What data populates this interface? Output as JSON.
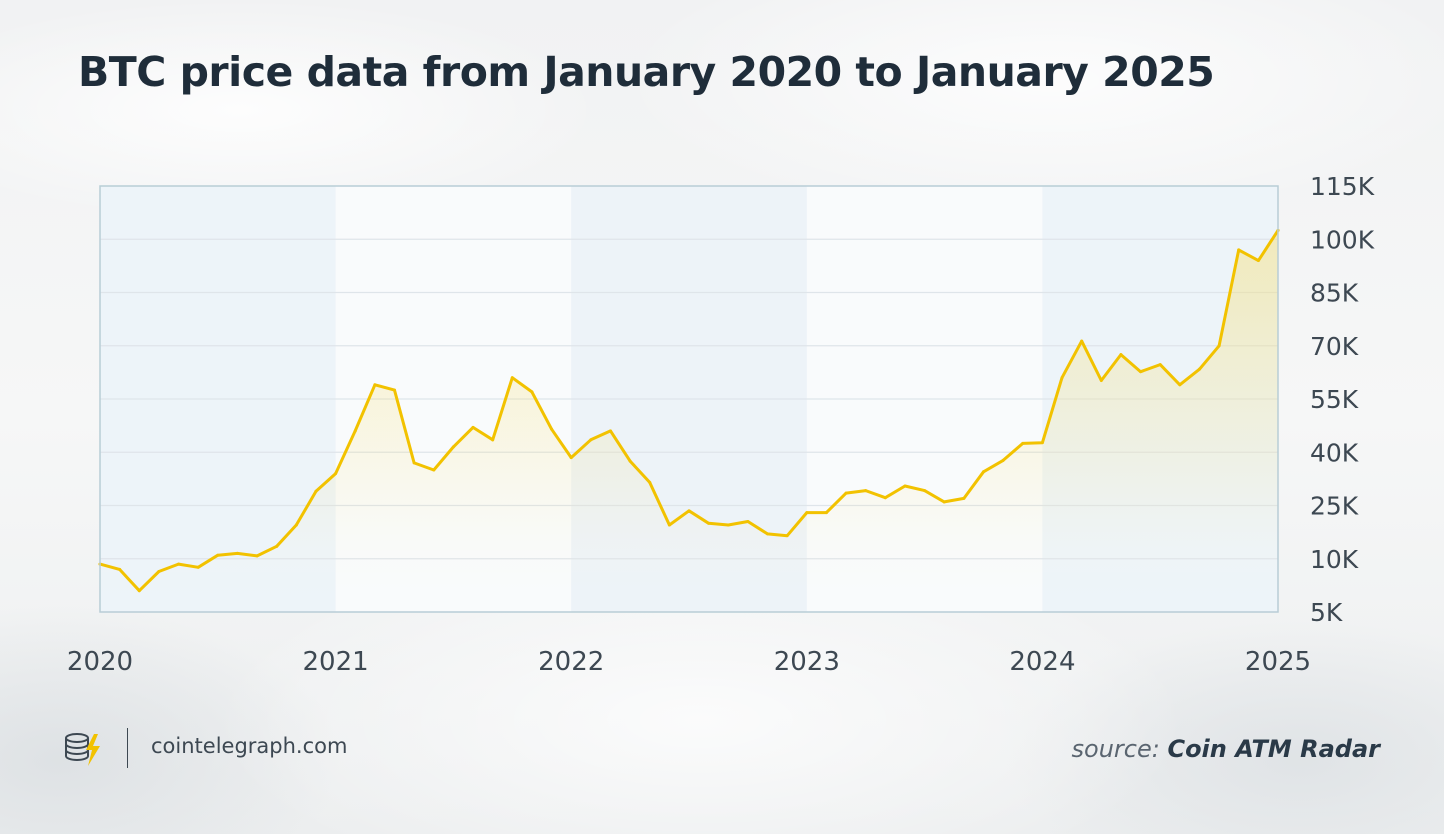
{
  "title": "BTC price data from January 2020 to January 2025",
  "footer": {
    "site": "cointelegraph.com",
    "source_label": "source:",
    "source_name": "Coin ATM Radar",
    "logo_icon": "cointelegraph-logo-icon"
  },
  "colors": {
    "line": "#f2c200",
    "area_top": "#f7dc66",
    "title": "#1f2d3a",
    "axis_text": "#3d4852",
    "grid": "#dfe5ea",
    "frame": "#b8cdd6",
    "panel_tint": "#e4eff5"
  },
  "chart_data": {
    "type": "area",
    "title": "BTC price data from January 2020 to January 2025",
    "xlabel": "",
    "ylabel": "",
    "x_tick_labels": [
      "2020",
      "2021",
      "2022",
      "2023",
      "2024",
      "2025"
    ],
    "y_tick_labels": [
      "115K",
      "100K",
      "85K",
      "70K",
      "55K",
      "40K",
      "25K",
      "10K",
      "5K"
    ],
    "y_tick_values": [
      115000,
      100000,
      85000,
      70000,
      55000,
      40000,
      25000,
      10000,
      5000
    ],
    "xlim": [
      "2020-01",
      "2025-01"
    ],
    "ylim": [
      0,
      115000
    ],
    "grid": true,
    "legend": "none",
    "series": [
      {
        "x": [
          "2020-01",
          "2020-02",
          "2020-03",
          "2020-04",
          "2020-05",
          "2020-06",
          "2020-07",
          "2020-08",
          "2020-09",
          "2020-10",
          "2020-11",
          "2020-12",
          "2021-01",
          "2021-02",
          "2021-03",
          "2021-04",
          "2021-05",
          "2021-06",
          "2021-07",
          "2021-08",
          "2021-09",
          "2021-10",
          "2021-11",
          "2021-12",
          "2022-01",
          "2022-02",
          "2022-03",
          "2022-04",
          "2022-05",
          "2022-06",
          "2022-07",
          "2022-08",
          "2022-09",
          "2022-10",
          "2022-11",
          "2022-12",
          "2023-01",
          "2023-02",
          "2023-03",
          "2023-04",
          "2023-05",
          "2023-06",
          "2023-07",
          "2023-08",
          "2023-09",
          "2023-10",
          "2023-11",
          "2023-12",
          "2024-01",
          "2024-02",
          "2024-03",
          "2024-04",
          "2024-05",
          "2024-06",
          "2024-07",
          "2024-08",
          "2024-09",
          "2024-10",
          "2024-11",
          "2024-12",
          "2025-01"
        ],
        "y": [
          9500,
          9000,
          7000,
          8800,
          9500,
          9200,
          11000,
          11500,
          10800,
          13500,
          19500,
          29000,
          34000,
          46000,
          59000,
          57500,
          37000,
          35000,
          41500,
          47000,
          43500,
          61000,
          57000,
          46500,
          38500,
          43500,
          46000,
          37500,
          31500,
          19500,
          23500,
          20000,
          19500,
          20500,
          17000,
          16500,
          23000,
          23000,
          28500,
          29200,
          27200,
          30500,
          29200,
          26000,
          27000,
          34500,
          37700,
          42500,
          42700,
          61000,
          71300,
          60200,
          67500,
          62700,
          64700,
          59000,
          63400,
          70000,
          97000,
          94000,
          102500
        ]
      }
    ]
  }
}
